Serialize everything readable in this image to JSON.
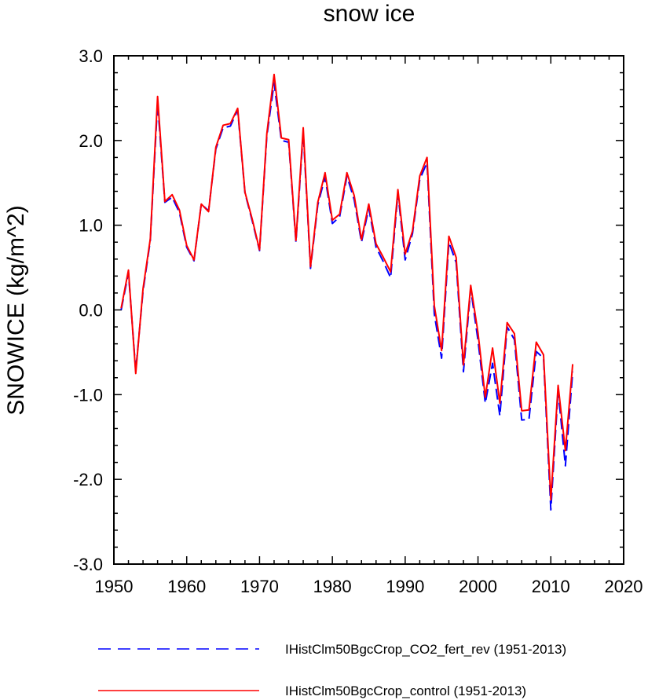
{
  "chart_data": {
    "type": "line",
    "title": "snow ice",
    "xlabel": "",
    "ylabel": "SNOWICE  (kg/m^2)",
    "xlim": [
      1950,
      2020
    ],
    "ylim": [
      -3.0,
      3.0
    ],
    "xticks": [
      1950,
      1960,
      1970,
      1980,
      1990,
      2000,
      2010,
      2020
    ],
    "yticks": [
      -3.0,
      -2.0,
      -1.0,
      0.0,
      1.0,
      2.0,
      3.0
    ],
    "xtick_labels": [
      "1950",
      "1960",
      "1970",
      "1980",
      "1990",
      "2000",
      "2010",
      "2020"
    ],
    "ytick_labels": [
      "-3.0",
      "-2.0",
      "-1.0",
      "0.0",
      "1.0",
      "2.0",
      "3.0"
    ],
    "grid": false,
    "legend_position": "bottom",
    "x": [
      1951,
      1952,
      1953,
      1954,
      1955,
      1956,
      1957,
      1958,
      1959,
      1960,
      1961,
      1962,
      1963,
      1964,
      1965,
      1966,
      1967,
      1968,
      1969,
      1970,
      1971,
      1972,
      1973,
      1974,
      1975,
      1976,
      1977,
      1978,
      1979,
      1980,
      1981,
      1982,
      1983,
      1984,
      1985,
      1986,
      1987,
      1988,
      1989,
      1990,
      1991,
      1992,
      1993,
      1994,
      1995,
      1996,
      1997,
      1998,
      1999,
      2000,
      2001,
      2002,
      2003,
      2004,
      2005,
      2006,
      2007,
      2008,
      2009,
      2010,
      2011,
      2012,
      2013
    ],
    "series": [
      {
        "name": "IHistClm50BgcCrop_CO2_fert_rev (1951-2013)",
        "color": "#0000ff",
        "dash": "dashed",
        "values": [
          0.0,
          0.44,
          -0.72,
          0.22,
          0.82,
          2.45,
          1.27,
          1.33,
          1.15,
          0.74,
          0.58,
          1.25,
          1.17,
          1.9,
          2.15,
          2.17,
          2.36,
          1.38,
          1.05,
          0.7,
          2.05,
          2.68,
          2.0,
          1.98,
          0.8,
          2.1,
          0.49,
          1.24,
          1.57,
          1.02,
          1.1,
          1.58,
          1.3,
          0.8,
          1.2,
          0.74,
          0.57,
          0.38,
          1.38,
          0.59,
          0.9,
          1.54,
          1.74,
          -0.05,
          -0.57,
          0.8,
          0.56,
          -0.73,
          0.25,
          -0.36,
          -1.1,
          -0.63,
          -1.25,
          -0.2,
          -0.35,
          -1.3,
          -1.29,
          -0.49,
          -0.57,
          -2.36,
          -0.95,
          -1.84,
          -0.73
        ]
      },
      {
        "name": "IHistClm50BgcCrop_control (1951-2013)",
        "color": "#ff0000",
        "dash": "solid",
        "values": [
          0.02,
          0.47,
          -0.75,
          0.25,
          0.84,
          2.52,
          1.28,
          1.36,
          1.18,
          0.76,
          0.59,
          1.25,
          1.16,
          1.92,
          2.18,
          2.2,
          2.38,
          1.39,
          1.07,
          0.71,
          2.08,
          2.78,
          2.03,
          2.01,
          0.82,
          2.15,
          0.51,
          1.27,
          1.62,
          1.06,
          1.13,
          1.62,
          1.35,
          0.83,
          1.25,
          0.78,
          0.62,
          0.45,
          1.42,
          0.66,
          0.93,
          1.58,
          1.8,
          0.05,
          -0.48,
          0.87,
          0.62,
          -0.65,
          0.29,
          -0.27,
          -1.03,
          -0.45,
          -1.1,
          -0.15,
          -0.28,
          -1.19,
          -1.18,
          -0.38,
          -0.53,
          -2.24,
          -0.89,
          -1.66,
          -0.64
        ]
      }
    ]
  }
}
